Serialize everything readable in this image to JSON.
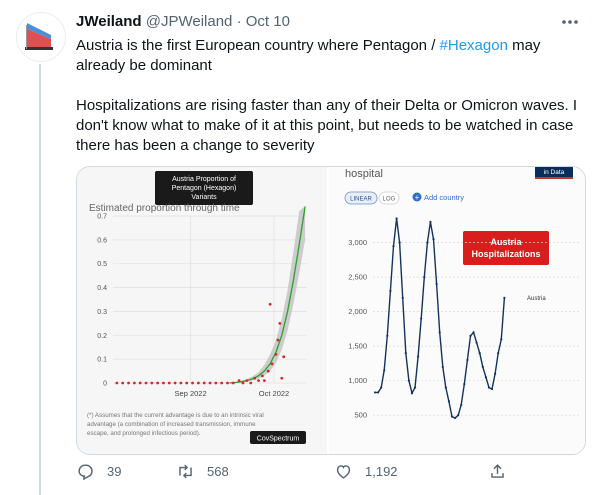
{
  "tweet": {
    "display_name": "JWeiland",
    "handle": "@JPWeiland",
    "separator": " · ",
    "date": "Oct 10",
    "text_line1_pre": "Austria is the first European country where Pentagon / ",
    "hashtag": "#Hexagon",
    "text_line1_post": " may already be dominant",
    "text_para2": "Hospitalizations are rising faster than any of their Delta or Omicron waves. I don't know what to make of it at this point, but needs to be watched in case there has been a change to severity"
  },
  "actions": {
    "replies": "39",
    "retweets": "568",
    "likes": "1,192"
  },
  "left_chart": {
    "title_box_lines": [
      "Austria Proportion of",
      "Pentagon (Hexagon)",
      "Variants"
    ],
    "subtitle": "Estimated proportion through time",
    "footnote_lines": [
      "(*) Assumes that the current advantage is due to an intrinsic viral",
      "advantage (a combination of increased transmission, immune",
      "escape, and prolonged infectious period)."
    ],
    "source_label": "CovSpectrum"
  },
  "right_chart": {
    "header_text": "hospital",
    "brand_text": "in Data",
    "linear_label": "LINEAR",
    "log_label": "LOG",
    "add_country_label": "Add country",
    "annotation_lines": [
      "Austria",
      "Hospitalizations"
    ],
    "series_label": "Austria"
  },
  "chart_data": [
    {
      "type": "scatter",
      "title": "Estimated proportion through time",
      "x_tick_labels": [
        "Sep 2022",
        "Oct 2022"
      ],
      "y_tick_labels": [
        "0",
        "0.1",
        "0.2",
        "0.3",
        "0.4",
        "0.5",
        "0.6",
        "0.7"
      ],
      "ylim": [
        0,
        0.7
      ],
      "xlim": [
        0,
        100
      ],
      "series": [
        {
          "x": [
            2,
            5,
            8,
            11,
            14,
            17,
            20,
            23,
            26,
            29,
            32,
            35,
            38,
            41,
            44,
            47,
            50,
            53,
            56,
            59,
            62,
            65,
            67,
            69,
            71,
            73,
            75,
            77,
            78,
            80,
            81,
            82,
            84,
            85,
            86,
            87,
            88
          ],
          "y": [
            0,
            0,
            0,
            0,
            0,
            0,
            0,
            0,
            0,
            0,
            0,
            0,
            0,
            0,
            0,
            0,
            0,
            0,
            0,
            0,
            0,
            0.01,
            0,
            0.01,
            0,
            0.02,
            0.01,
            0.03,
            0.01,
            0.05,
            0.33,
            0.08,
            0.12,
            0.18,
            0.25,
            0.02,
            0.11
          ]
        }
      ],
      "fit": {
        "x": [
          60,
          63,
          66,
          69,
          72,
          75,
          78,
          81,
          84,
          87,
          90,
          93,
          96,
          99
        ],
        "y": [
          0,
          0.002,
          0.005,
          0.01,
          0.018,
          0.03,
          0.05,
          0.08,
          0.13,
          0.2,
          0.3,
          0.43,
          0.58,
          0.74
        ]
      },
      "band": {
        "x": [
          60,
          63,
          66,
          69,
          72,
          75,
          78,
          81,
          84,
          87,
          90,
          93,
          96,
          99
        ],
        "lower": [
          0,
          0.001,
          0.003,
          0.006,
          0.01,
          0.018,
          0.03,
          0.05,
          0.085,
          0.14,
          0.22,
          0.33,
          0.46,
          0.6
        ],
        "upper": [
          0.002,
          0.004,
          0.009,
          0.016,
          0.028,
          0.045,
          0.075,
          0.12,
          0.18,
          0.27,
          0.39,
          0.55,
          0.72,
          0.9
        ]
      }
    },
    {
      "type": "line",
      "title": "Austria Hospitalizations",
      "y_tick_labels": [
        "500",
        "1,000",
        "1,500",
        "2,000",
        "2,500",
        "3,000"
      ],
      "ylim": [
        300,
        3400
      ],
      "xlim": [
        0,
        100
      ],
      "series": [
        {
          "name": "Austria",
          "x": [
            0,
            2,
            4,
            6,
            8,
            10,
            12,
            14,
            16,
            18,
            20,
            22,
            24,
            26,
            28,
            30,
            32,
            34,
            36,
            38,
            40,
            42,
            44,
            46,
            48,
            50,
            52,
            54,
            56,
            58,
            60,
            62,
            64,
            66,
            68,
            70,
            72,
            74,
            76,
            78,
            80,
            82,
            84,
            86,
            88,
            90,
            92,
            94,
            96,
            98,
            100
          ],
          "y": [
            830,
            830,
            900,
            1150,
            1650,
            2300,
            2950,
            3350,
            3000,
            2200,
            1400,
            1000,
            820,
            900,
            1350,
            1900,
            2500,
            3000,
            3300,
            3050,
            2400,
            1700,
            1200,
            900,
            700,
            480,
            460,
            500,
            650,
            950,
            1300,
            1650,
            1700,
            1550,
            1400,
            1200,
            1050,
            900,
            880,
            1100,
            1400,
            1600,
            2200,
            2200,
            2200,
            2200,
            2200,
            2200,
            2200,
            2200,
            2200
          ]
        }
      ]
    }
  ]
}
